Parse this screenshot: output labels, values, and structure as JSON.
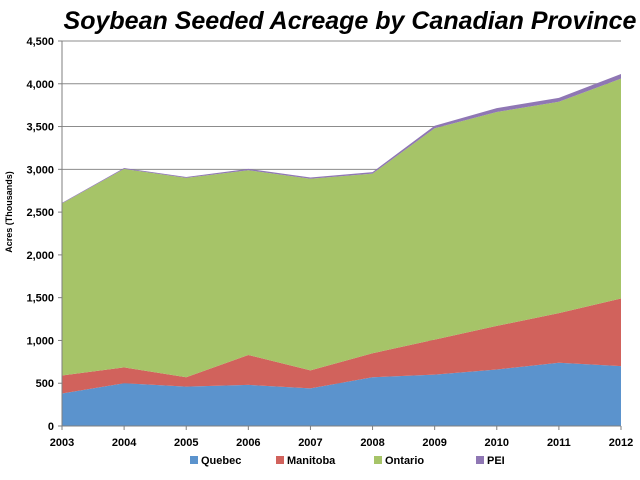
{
  "chart_data": {
    "type": "area",
    "stacked": true,
    "title": "Soybean Seeded Acreage by Canadian Province",
    "ylabel": "Acres  (Thousands)",
    "xlabel": "",
    "x": [
      "2003",
      "2004",
      "2005",
      "2006",
      "2007",
      "2008",
      "2009",
      "2010",
      "2011",
      "2012"
    ],
    "ylim": [
      0,
      4500
    ],
    "yticks": [
      "0",
      "500",
      "1,000",
      "1,500",
      "2,000",
      "2,500",
      "3,000",
      "3,500",
      "4,000",
      "4,500"
    ],
    "ytick_values": [
      0,
      500,
      1000,
      1500,
      2000,
      2500,
      3000,
      3500,
      4000,
      4500
    ],
    "grid": true,
    "legend_position": "bottom",
    "series": [
      {
        "name": "Quebec",
        "color": "#5b93cd",
        "values": [
          380,
          500,
          460,
          480,
          440,
          570,
          600,
          660,
          740,
          700
        ]
      },
      {
        "name": "Manitoba",
        "color": "#d1625c",
        "values": [
          210,
          185,
          110,
          350,
          210,
          280,
          410,
          510,
          580,
          790
        ]
      },
      {
        "name": "Ontario",
        "color": "#a6c468",
        "values": [
          2010,
          2320,
          2330,
          2160,
          2240,
          2100,
          2470,
          2500,
          2470,
          2570
        ]
      },
      {
        "name": "PEI",
        "color": "#8f77b4",
        "values": [
          8,
          10,
          10,
          15,
          15,
          18,
          30,
          45,
          45,
          55
        ]
      }
    ]
  }
}
